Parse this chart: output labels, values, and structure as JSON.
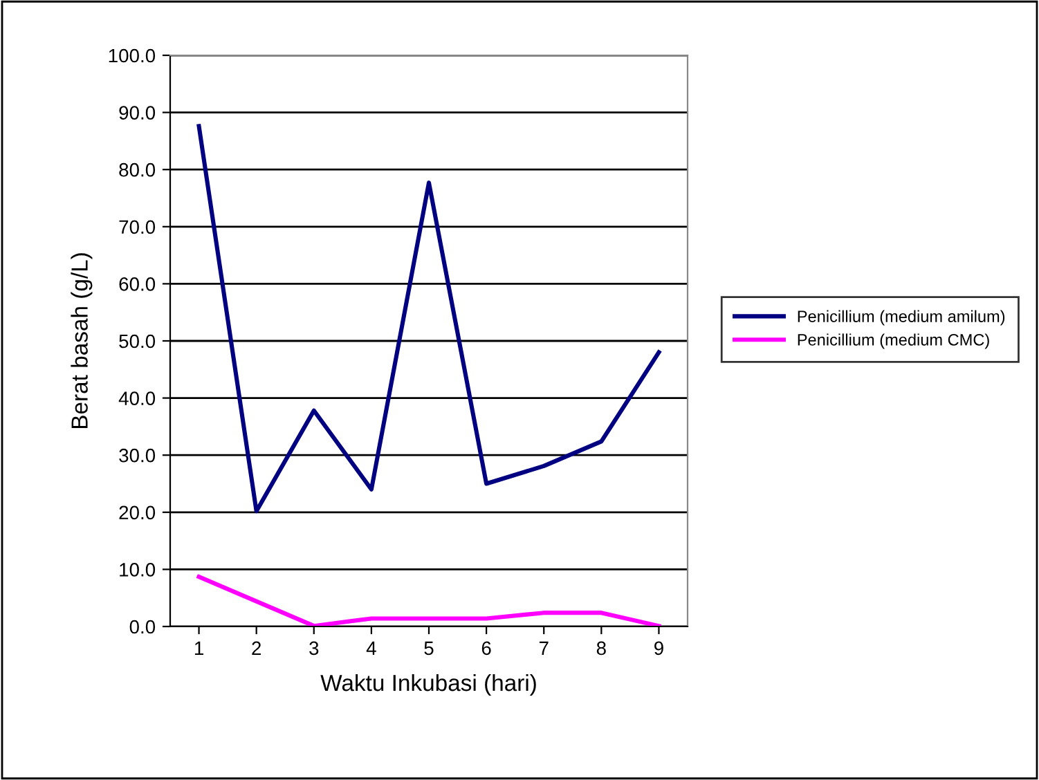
{
  "chart_data": {
    "type": "line",
    "xlabel": "Waktu Inkubasi (hari)",
    "ylabel": "Berat basah (g/L)",
    "categories": [
      "1",
      "2",
      "3",
      "4",
      "5",
      "6",
      "7",
      "8",
      "9"
    ],
    "series": [
      {
        "name": "Penicillium (medium amilum)",
        "color": "#000080",
        "values": [
          87.6,
          20.2,
          37.8,
          24.0,
          77.7,
          25.0,
          28.1,
          32.4,
          48.0
        ]
      },
      {
        "name": "Penicillium (medium CMC)",
        "color": "#ff00ff",
        "values": [
          8.7,
          4.4,
          0.1,
          1.4,
          1.4,
          1.4,
          2.4,
          2.4,
          0.1
        ]
      }
    ],
    "ylim": [
      0,
      100
    ],
    "yticks": [
      {
        "value": 0,
        "label": "0.0"
      },
      {
        "value": 10,
        "label": "10.0"
      },
      {
        "value": 20,
        "label": "20.0"
      },
      {
        "value": 30,
        "label": "30.0"
      },
      {
        "value": 40,
        "label": "40.0"
      },
      {
        "value": 50,
        "label": "50.0"
      },
      {
        "value": 60,
        "label": "60.0"
      },
      {
        "value": 70,
        "label": "70.0"
      },
      {
        "value": 80,
        "label": "80.0"
      },
      {
        "value": 90,
        "label": "90.0"
      },
      {
        "value": 100,
        "label": "100.0"
      }
    ],
    "grid": "y",
    "legend": "right",
    "marker": "none",
    "line_style": "solid"
  }
}
